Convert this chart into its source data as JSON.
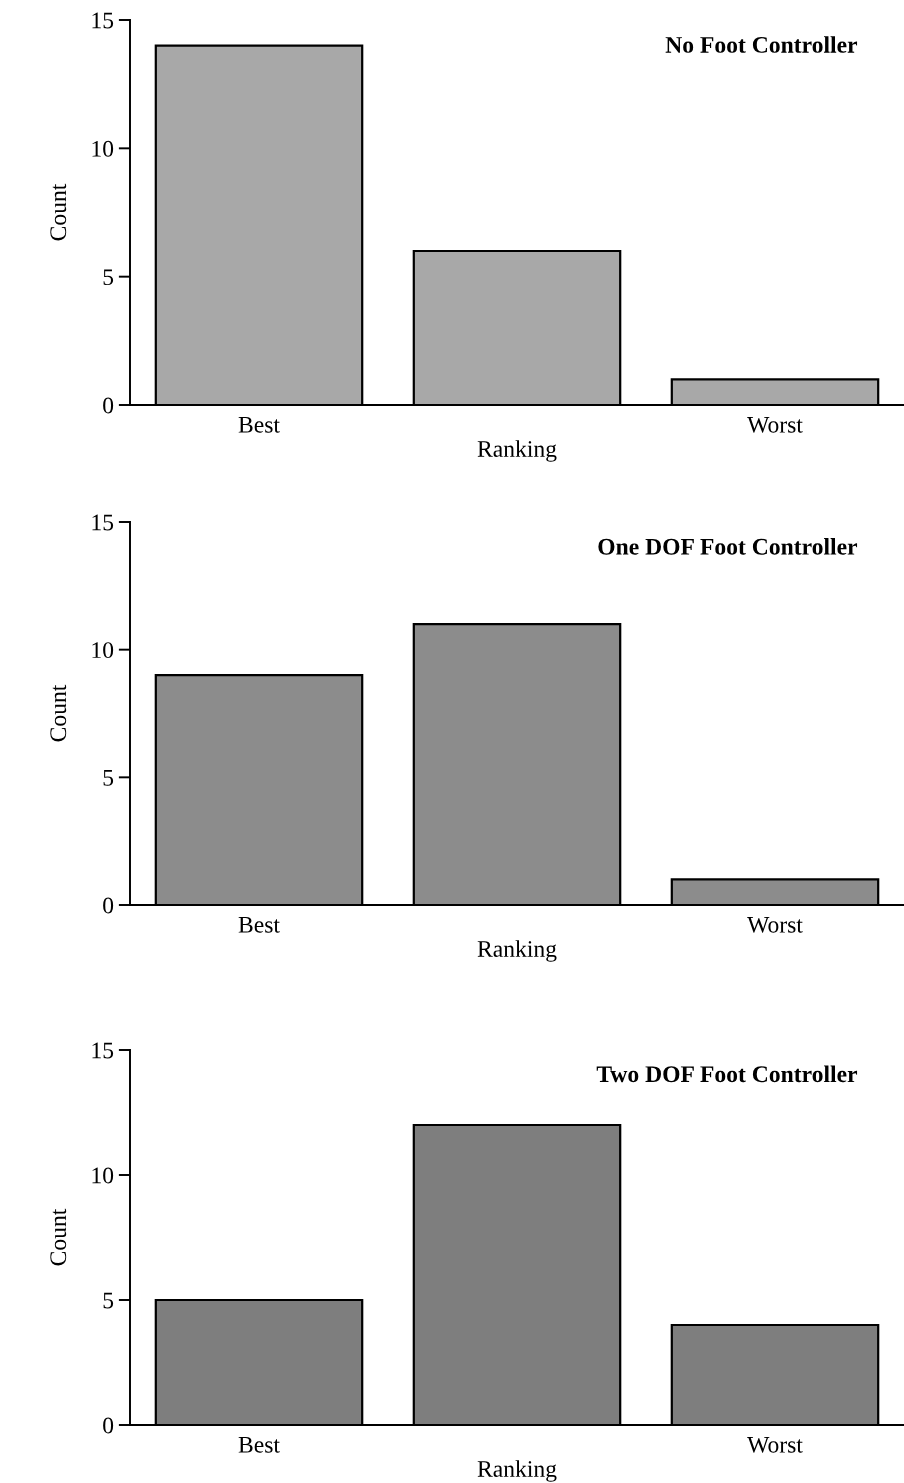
{
  "chart_data": [
    {
      "type": "bar",
      "title": "No Foot Controller",
      "xlabel": "Ranking",
      "ylabel": "Count",
      "categories": [
        "Best",
        null,
        "Worst"
      ],
      "values": [
        14,
        6,
        1
      ],
      "color": "#a8a8a8",
      "ylim": [
        0,
        15
      ],
      "yticks": [
        0,
        5,
        10,
        15
      ],
      "grid": false,
      "legend": false
    },
    {
      "type": "bar",
      "title": "One DOF Foot Controller",
      "xlabel": "Ranking",
      "ylabel": "Count",
      "categories": [
        "Best",
        null,
        "Worst"
      ],
      "values": [
        9,
        11,
        1
      ],
      "color": "#8c8c8c",
      "ylim": [
        0,
        15
      ],
      "yticks": [
        0,
        5,
        10,
        15
      ],
      "grid": false,
      "legend": false
    },
    {
      "type": "bar",
      "title": "Two DOF Foot Controller",
      "xlabel": "Ranking",
      "ylabel": "Count",
      "categories": [
        "Best",
        null,
        "Worst"
      ],
      "values": [
        5,
        12,
        4
      ],
      "color": "#7e7e7e",
      "ylim": [
        0,
        15
      ],
      "yticks": [
        0,
        5,
        10,
        15
      ],
      "grid": false,
      "legend": false
    }
  ]
}
